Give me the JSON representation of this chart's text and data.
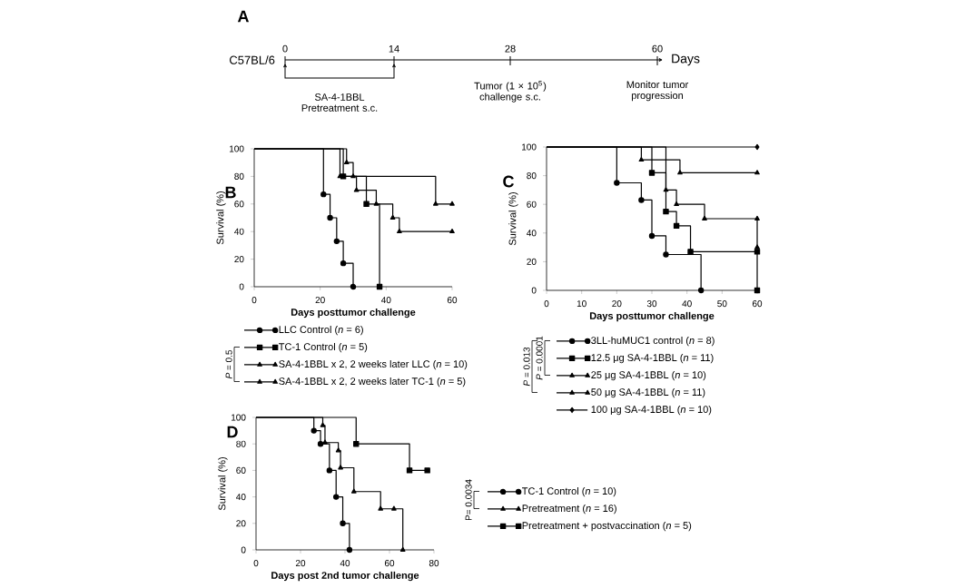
{
  "chart_data": [
    {
      "type": "other",
      "title": "A",
      "ylabel": "C57BL/6",
      "xlabel": "Days",
      "annotations": [
        "0",
        "14",
        "28",
        "60",
        "SA-4-1BBL Pretreatment s.c.",
        "Tumor (1 × 10$^{5}$) challenge s.c.",
        "Monitor tumor progression"
      ]
    },
    {
      "type": "step",
      "title": "B",
      "xlabel": "Days posttumor challenge",
      "ylabel": "Survival (%)",
      "xlim": [
        0,
        60
      ],
      "xticks": [
        0,
        20,
        40,
        60
      ],
      "ylim": [
        0,
        100
      ],
      "yticks": [
        0,
        20,
        40,
        60,
        80,
        100
      ],
      "legend": "bottom",
      "annotations": [
        "*P* = 0.5"
      ],
      "series": [
        {
          "name": "LLC Control (*n* = 6)",
          "color": "#000000",
          "marker": "circle",
          "x": [
            0,
            21,
            23,
            25,
            27,
            30
          ],
          "values": [
            100,
            67,
            50,
            33,
            17,
            0
          ]
        },
        {
          "name": "TC-1 Control (*n* = 5)",
          "color": "#000000",
          "marker": "square",
          "x": [
            0,
            27,
            34,
            38
          ],
          "values": [
            100,
            80,
            60,
            0
          ]
        },
        {
          "name": "SA-4-1BBL x 2, 2 weeks later LLC (*n* = 10)",
          "color": "#000000",
          "marker": "triangle",
          "x": [
            0,
            28,
            30,
            31,
            37,
            42,
            44,
            60
          ],
          "values": [
            100,
            90,
            80,
            70,
            60,
            50,
            40,
            40
          ]
        },
        {
          "name": "SA-4-1BBL x 2, 2 weeks later TC-1 (*n* = 5)",
          "color": "#000000",
          "marker": "triangle",
          "x": [
            0,
            26,
            55,
            60
          ],
          "values": [
            100,
            80,
            60,
            60
          ]
        }
      ]
    },
    {
      "type": "step",
      "title": "C",
      "xlabel": "Days posttumor challenge",
      "ylabel": "Survival (%)",
      "xlim": [
        0,
        60
      ],
      "xticks": [
        0,
        10,
        20,
        30,
        40,
        50,
        60
      ],
      "ylim": [
        0,
        100
      ],
      "yticks": [
        0,
        20,
        40,
        60,
        80,
        100
      ],
      "legend": "bottom",
      "annotations": [
        "*P* = 0.013",
        "*P* = 0.0001"
      ],
      "series": [
        {
          "name": "3LL-huMUC1 control (*n* = 8)",
          "color": "#000000",
          "marker": "circle",
          "x": [
            0,
            20,
            27,
            30,
            34,
            44
          ],
          "values": [
            100,
            75,
            63,
            38,
            25,
            0
          ]
        },
        {
          "name": "12.5 μg SA-4-1BBL (*n* = 11)",
          "color": "#000000",
          "marker": "square",
          "x": [
            0,
            30,
            34,
            37,
            41,
            60,
            60
          ],
          "values": [
            100,
            82,
            55,
            45,
            27,
            27,
            0
          ]
        },
        {
          "name": "25 μg SA-4-1BBL (*n* = 10)",
          "color": "#000000",
          "marker": "triangle",
          "x": [
            0,
            34,
            37,
            45,
            60,
            60
          ],
          "values": [
            100,
            70,
            60,
            50,
            50,
            30
          ]
        },
        {
          "name": "50 μg SA-4-1BBL (*n* = 11)",
          "color": "#000000",
          "marker": "triangle",
          "x": [
            0,
            27,
            38,
            60
          ],
          "values": [
            100,
            91,
            82,
            82
          ]
        },
        {
          "name": "100 μg SA-4-1BBL (*n* = 10)",
          "color": "#000000",
          "marker": "diamond",
          "x": [
            0,
            60
          ],
          "values": [
            100,
            100
          ]
        }
      ]
    },
    {
      "type": "step",
      "title": "D",
      "xlabel": "Days post 2nd tumor challenge",
      "ylabel": "Survival (%)",
      "xlim": [
        0,
        80
      ],
      "xticks": [
        0,
        20,
        40,
        60,
        80
      ],
      "ylim": [
        0,
        100
      ],
      "yticks": [
        0,
        20,
        40,
        60,
        80,
        100
      ],
      "legend": "bottom",
      "annotations": [
        "P= 0.0034"
      ],
      "series": [
        {
          "name": "TC-1 Control (*n* = 10)",
          "color": "#000000",
          "marker": "circle",
          "x": [
            0,
            26,
            29,
            33,
            36,
            39,
            42
          ],
          "values": [
            100,
            90,
            80,
            60,
            40,
            20,
            0
          ]
        },
        {
          "name": "Pretreatment (*n* = 16)",
          "color": "#000000",
          "marker": "triangle",
          "x": [
            0,
            30,
            31,
            37,
            38,
            44,
            56,
            62,
            66
          ],
          "values": [
            100,
            94,
            81,
            75,
            62,
            44,
            31,
            31,
            0
          ]
        },
        {
          "name": "Pretreatment + postvaccination (*n* = 5)",
          "color": "#000000",
          "marker": "square",
          "x": [
            0,
            45,
            69,
            77
          ],
          "values": [
            100,
            80,
            60,
            60
          ]
        }
      ]
    }
  ]
}
